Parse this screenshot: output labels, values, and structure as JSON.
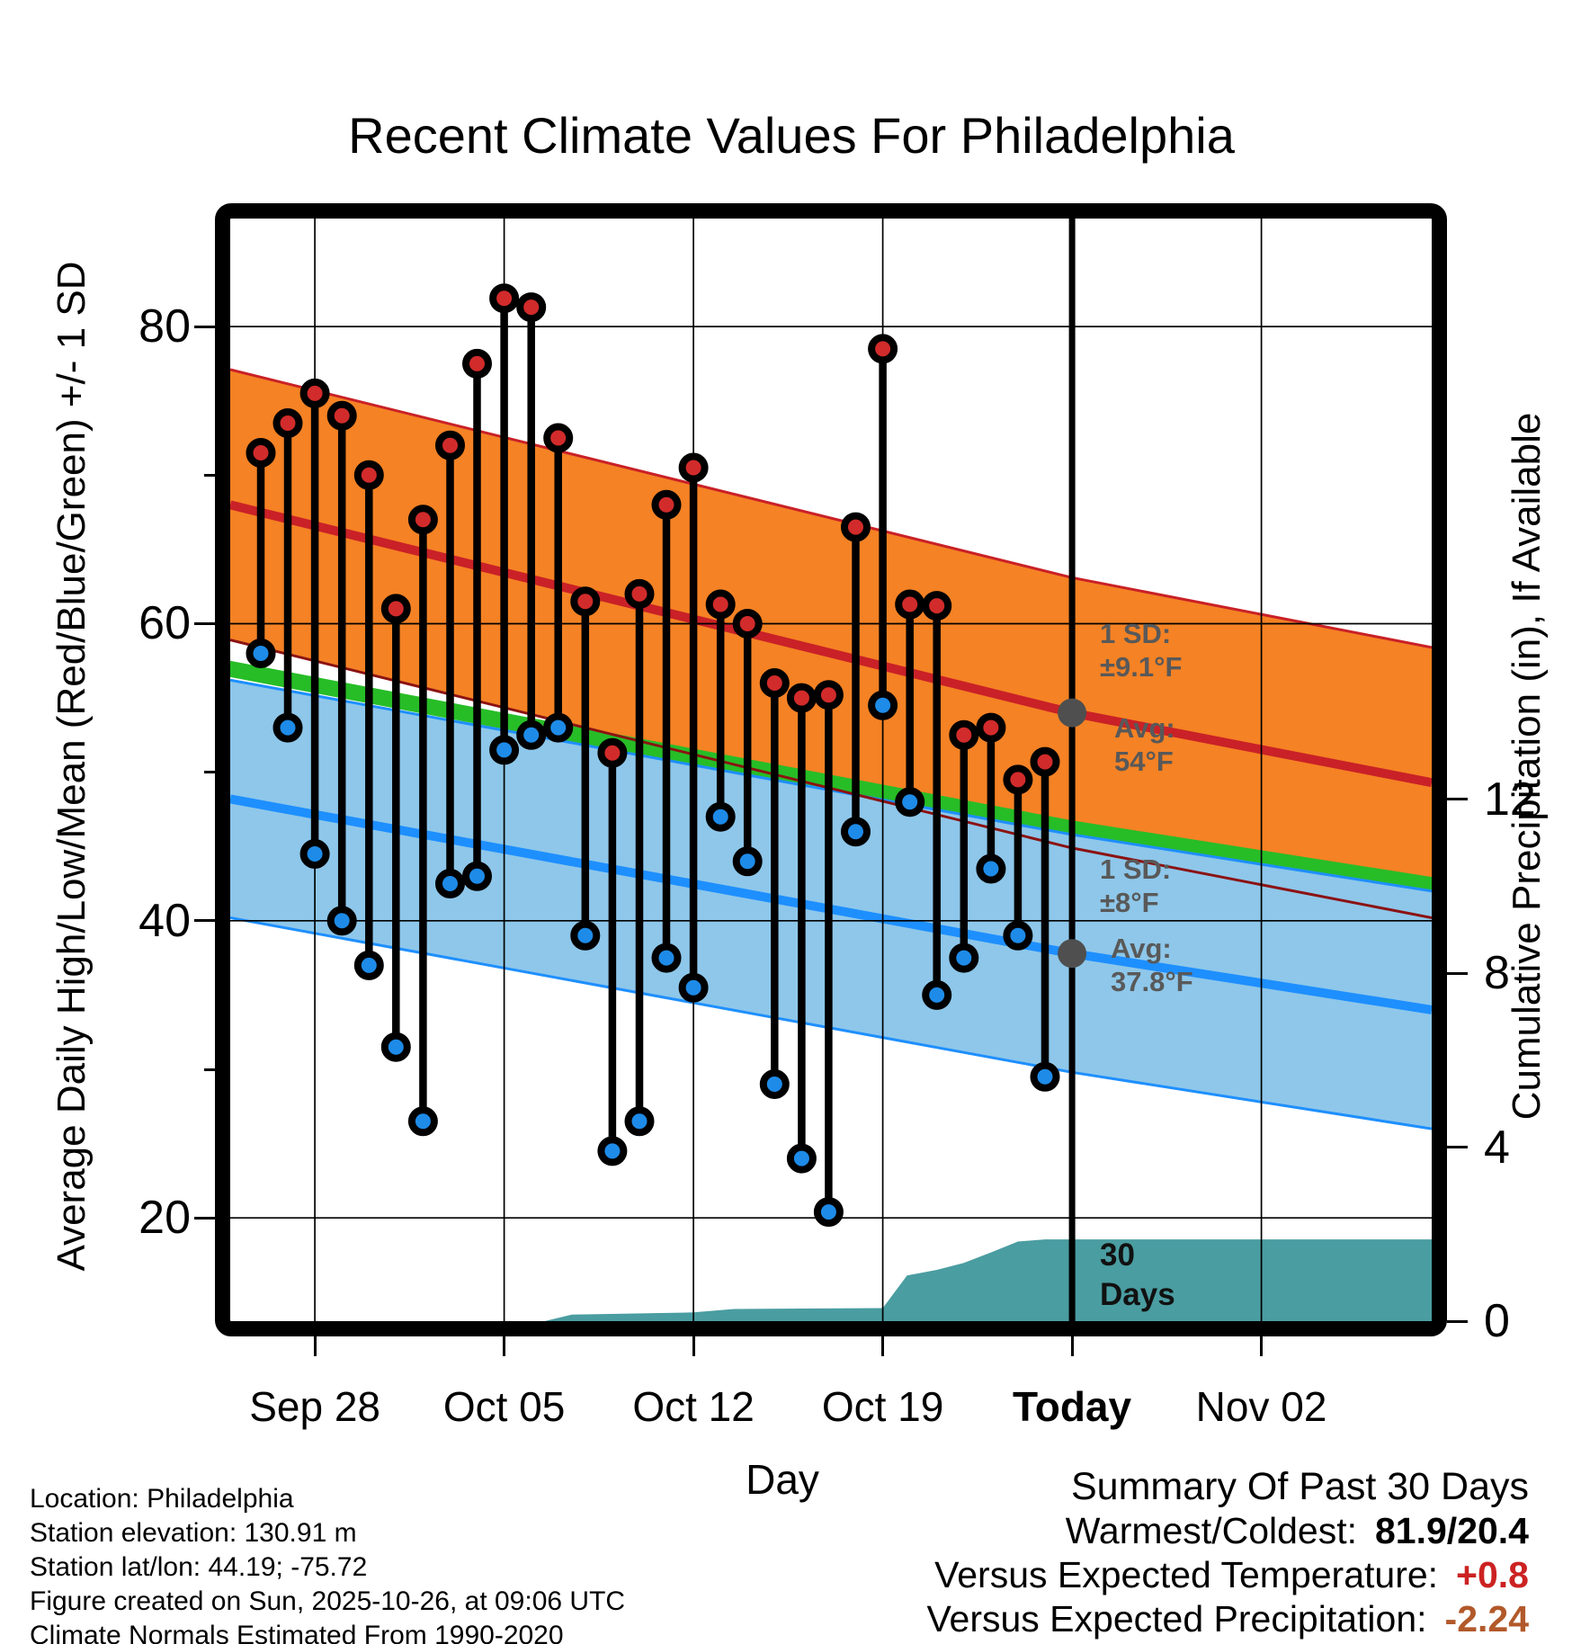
{
  "title": "Recent Climate Values For Philadelphia",
  "axes": {
    "left_label": "Average Daily High/Low/Mean (Red/Blue/Green) +/- 1 SD",
    "right_label": "Cumulative Precipitation (in), If Available",
    "x_label": "Day",
    "x_ticks": [
      {
        "label": "Sep 28",
        "day": 2,
        "bold": false
      },
      {
        "label": "Oct 05",
        "day": 9,
        "bold": false
      },
      {
        "label": "Oct 12",
        "day": 16,
        "bold": false
      },
      {
        "label": "Oct 19",
        "day": 23,
        "bold": false
      },
      {
        "label": "Today",
        "day": 30,
        "bold": true
      },
      {
        "label": "Nov 02",
        "day": 37,
        "bold": false
      }
    ],
    "y_left_ticks": [
      80,
      60,
      40,
      20
    ],
    "y_left_minor_ticks": [
      70,
      50,
      30
    ],
    "y_right_ticks": [
      12,
      8,
      4,
      0
    ],
    "x_range_days": [
      -1.13,
      43.3
    ],
    "y_left_range_f": [
      13.05,
      87.27
    ],
    "y_right_range_in": [
      0,
      25.36
    ]
  },
  "chart_data": {
    "type": "scatter",
    "title": "Recent Climate Values For Philadelphia",
    "xlabel": "Day",
    "ylabel_left": "Average Daily High/Low/Mean (Red/Blue/Green) +/- 1 SD",
    "ylabel_right": "Cumulative Precipitation (in), If Available",
    "x_dates": [
      "Sep 26",
      "Sep 27",
      "Sep 28",
      "Sep 29",
      "Sep 30",
      "Oct 01",
      "Oct 02",
      "Oct 03",
      "Oct 04",
      "Oct 05",
      "Oct 06",
      "Oct 07",
      "Oct 08",
      "Oct 09",
      "Oct 10",
      "Oct 11",
      "Oct 12",
      "Oct 13",
      "Oct 14",
      "Oct 15",
      "Oct 16",
      "Oct 17",
      "Oct 18",
      "Oct 19",
      "Oct 20",
      "Oct 21",
      "Oct 22",
      "Oct 23",
      "Oct 24",
      "Oct 25"
    ],
    "series": [
      {
        "name": "daily_high_f",
        "color": "#D22B2B",
        "values": [
          71.5,
          73.5,
          75.5,
          74,
          70,
          61,
          67,
          72,
          77.5,
          81.9,
          81.3,
          72.5,
          61.5,
          51.3,
          62,
          68,
          70.5,
          61.3,
          60,
          56,
          55,
          55.2,
          66.5,
          78.5,
          61.3,
          61.2,
          52.5,
          53,
          49.5,
          50.7
        ]
      },
      {
        "name": "daily_low_f",
        "color": "#1E8BE8",
        "values": [
          58,
          53,
          44.5,
          40,
          37,
          31.5,
          26.5,
          42.5,
          43,
          51.5,
          52.5,
          53,
          39,
          24.5,
          26.5,
          37.5,
          35.5,
          47,
          44,
          29,
          24,
          20.4,
          46,
          54.5,
          48,
          35,
          37.5,
          43.5,
          39,
          29.5
        ]
      }
    ],
    "normals": {
      "high_mean_anchors": [
        [
          -1.13,
          68.0
        ],
        [
          30,
          54.0
        ],
        [
          43.3,
          49.3
        ]
      ],
      "high_sd_f": 9.1,
      "low_mean_anchors": [
        [
          -1.13,
          48.2
        ],
        [
          30,
          37.8
        ],
        [
          43.3,
          34.0
        ]
      ],
      "low_sd_f": 8.0,
      "mean_anchors": [
        [
          -1.13,
          56.95
        ],
        [
          30,
          46.2
        ],
        [
          43.3,
          42.4
        ]
      ],
      "mean_half_width_f": 0.55
    },
    "precip_cumulative_anchors": [
      [
        10.5,
        0
      ],
      [
        11.5,
        0.15
      ],
      [
        16,
        0.2
      ],
      [
        17.5,
        0.28
      ],
      [
        23,
        0.3
      ],
      [
        23.9,
        1.05
      ],
      [
        25,
        1.18
      ],
      [
        26,
        1.34
      ],
      [
        27,
        1.58
      ],
      [
        28,
        1.83
      ],
      [
        29,
        1.88
      ],
      [
        43.3,
        1.88
      ]
    ],
    "today_day_index": 30,
    "grid": true,
    "legend_position": "none"
  },
  "annotations": {
    "high_sd_label": "1 SD:",
    "high_sd_value": "±9.1°F",
    "high_avg_label": "Avg:",
    "high_avg_value": "54°F",
    "low_sd_label": "1 SD:",
    "low_sd_value": "±8°F",
    "low_avg_label": "Avg:",
    "low_avg_value": "37.8°F",
    "precip_window_line1": "30",
    "precip_window_line2": "Days"
  },
  "summary": {
    "heading": "Summary Of Past 30 Days",
    "rows": [
      {
        "label": "Warmest/Coldest:",
        "value": "81.9/20.4",
        "value_color": "#000000"
      },
      {
        "label": "Versus Expected Temperature:",
        "value": "+0.8",
        "value_color": "#CC2222"
      },
      {
        "label": "Versus Expected Precipitation:",
        "value": "-2.24",
        "value_color": "#B2592B"
      }
    ]
  },
  "footer": {
    "lines": [
      "Location: Philadelphia",
      "Station elevation: 130.91 m",
      "Station lat/lon: 44.19; -75.72",
      "Figure created on Sun, 2025-10-26, at 09:06 UTC",
      "Climate Normals Estimated From 1990-2020"
    ]
  },
  "colors": {
    "high_band": "#F58224",
    "high_line": "#C92127",
    "low_band": "#8EC7EA",
    "low_line": "#1E8FFF",
    "mean_band": "#27BD27",
    "precip_fill": "#4A9DA1",
    "annotation_grey": "#595959",
    "marker_grey": "#4F4F4F",
    "stem": "#000000"
  }
}
